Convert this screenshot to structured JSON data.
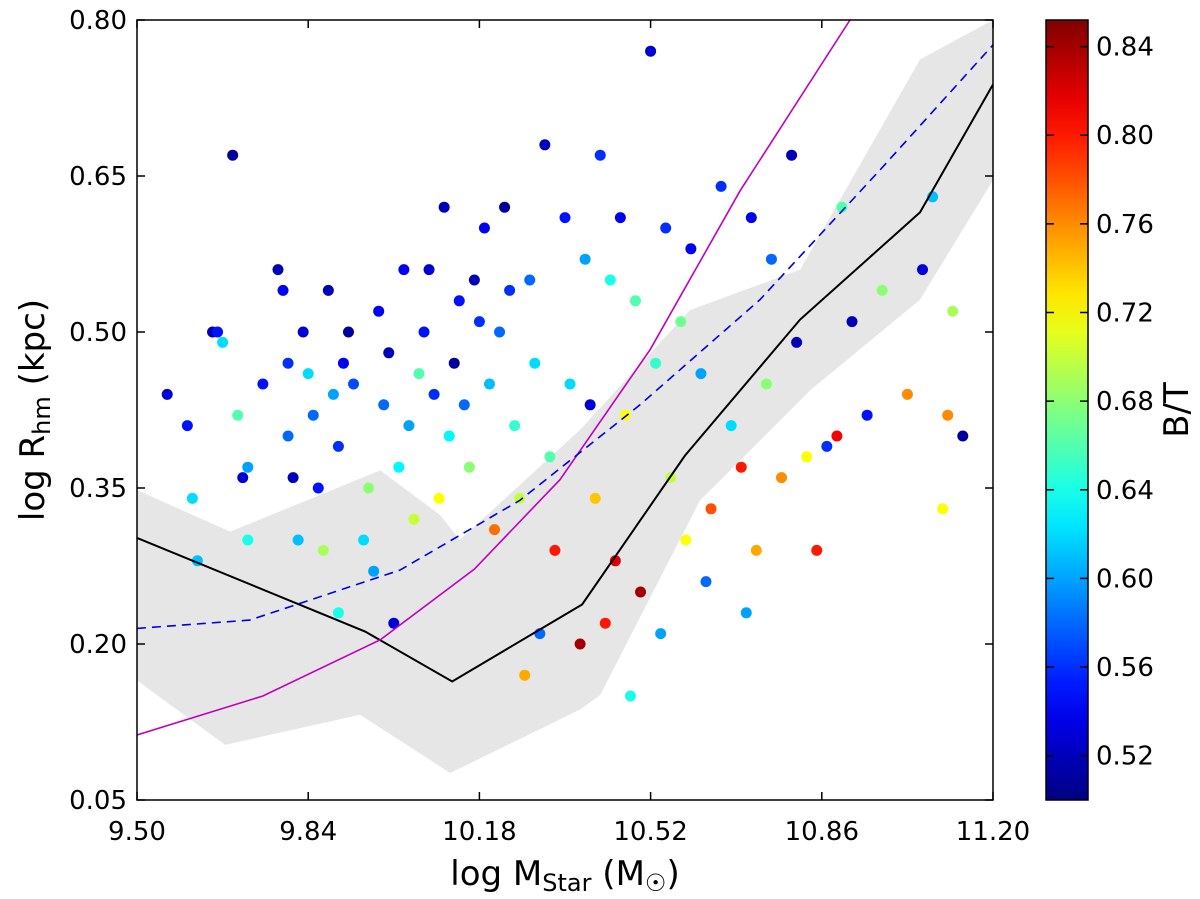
{
  "chart_data": {
    "type": "scatter",
    "xlabel": [
      "log M",
      "Star",
      " (M",
      "☉",
      ")"
    ],
    "ylabel": [
      "log R",
      "hm",
      " (kpc)"
    ],
    "colorbar_label": "B/T",
    "xlim": [
      9.5,
      11.2
    ],
    "ylim": [
      0.05,
      0.8
    ],
    "clim": [
      0.5,
      0.852
    ],
    "colormap": "jet",
    "xticks": [
      {
        "value": 9.5,
        "label": "9.50"
      },
      9.84,
      10.18,
      10.52,
      10.86,
      {
        "value": 11.2,
        "label": "11.20"
      }
    ],
    "yticks": [
      0.05,
      {
        "value": 0.2,
        "label": "0.20"
      },
      0.35,
      {
        "value": 0.5,
        "label": "0.50"
      },
      0.65,
      {
        "value": 0.8,
        "label": "0.80"
      }
    ],
    "cticks": [
      0.52,
      0.56,
      {
        "value": 0.6,
        "label": "0.60"
      },
      0.64,
      0.68,
      0.72,
      0.76,
      {
        "value": 0.8,
        "label": "0.80"
      },
      0.84
    ],
    "band": {
      "color": "#e6e6e6",
      "x_upper": [
        9.5,
        9.685,
        9.983,
        10.102,
        10.141,
        10.38,
        10.598,
        10.817,
        11.055,
        11.2
      ],
      "upper": [
        0.348,
        0.308,
        0.367,
        0.324,
        0.3,
        0.406,
        0.521,
        0.56,
        0.762,
        0.8
      ],
      "x_lower": [
        9.5,
        9.675,
        9.943,
        10.122,
        10.38,
        10.42,
        10.618,
        10.837,
        11.055,
        11.2
      ],
      "lower": [
        0.165,
        0.103,
        0.132,
        0.076,
        0.137,
        0.151,
        0.338,
        0.444,
        0.531,
        0.646
      ]
    },
    "curves": [
      {
        "color": "#000000",
        "style": "solid",
        "x": [
          9.5,
          9.953,
          10.126,
          10.384,
          10.588,
          10.817,
          11.055,
          11.2
        ],
        "y": [
          0.302,
          0.212,
          0.164,
          0.238,
          0.381,
          0.512,
          0.615,
          0.738
        ]
      },
      {
        "color": "#bf00bf",
        "style": "solid",
        "x": [
          9.5,
          9.75,
          9.983,
          10.17,
          10.34,
          10.519,
          10.698,
          10.916
        ],
        "y": [
          0.1125,
          0.15,
          0.204,
          0.272,
          0.358,
          0.483,
          0.636,
          0.8
        ]
      },
      {
        "color": "#0000e0",
        "style": "dashed",
        "x": [
          9.5,
          9.724,
          10.022,
          10.26,
          10.499,
          10.737,
          10.976,
          11.2
        ],
        "y": [
          0.215,
          0.223,
          0.271,
          0.338,
          0.43,
          0.531,
          0.656,
          0.776
        ]
      }
    ],
    "points": {
      "x": [
        9.56,
        9.6,
        9.61,
        9.62,
        9.65,
        9.66,
        9.67,
        9.69,
        9.7,
        9.71,
        9.72,
        9.72,
        9.75,
        9.78,
        9.79,
        9.8,
        9.8,
        9.81,
        9.82,
        9.83,
        9.84,
        9.85,
        9.86,
        9.87,
        9.88,
        9.89,
        9.9,
        9.9,
        9.91,
        9.92,
        9.93,
        9.95,
        9.96,
        9.97,
        9.98,
        9.99,
        10.0,
        10.01,
        10.02,
        10.03,
        10.04,
        10.05,
        10.06,
        10.07,
        10.08,
        10.09,
        10.1,
        10.11,
        10.12,
        10.13,
        10.14,
        10.15,
        10.16,
        10.17,
        10.18,
        10.19,
        10.2,
        10.21,
        10.22,
        10.23,
        10.24,
        10.25,
        10.26,
        10.27,
        10.28,
        10.29,
        10.3,
        10.31,
        10.32,
        10.33,
        10.35,
        10.36,
        10.38,
        10.39,
        10.4,
        10.41,
        10.42,
        10.43,
        10.44,
        10.45,
        10.46,
        10.47,
        10.48,
        10.49,
        10.5,
        10.52,
        10.53,
        10.54,
        10.55,
        10.56,
        10.58,
        10.59,
        10.6,
        10.62,
        10.63,
        10.64,
        10.66,
        10.68,
        10.7,
        10.71,
        10.72,
        10.73,
        10.75,
        10.76,
        10.78,
        10.8,
        10.81,
        10.83,
        10.85,
        10.87,
        10.89,
        10.9,
        10.92,
        10.95,
        10.98,
        11.03,
        11.06,
        11.08,
        11.1,
        11.12,
        11.14,
        11.11
      ],
      "y": [
        0.44,
        0.41,
        0.34,
        0.28,
        0.5,
        0.5,
        0.49,
        0.67,
        0.42,
        0.36,
        0.3,
        0.37,
        0.45,
        0.56,
        0.54,
        0.47,
        0.4,
        0.36,
        0.3,
        0.5,
        0.46,
        0.42,
        0.35,
        0.29,
        0.54,
        0.44,
        0.39,
        0.23,
        0.47,
        0.5,
        0.45,
        0.3,
        0.35,
        0.27,
        0.52,
        0.43,
        0.48,
        0.22,
        0.37,
        0.56,
        0.41,
        0.32,
        0.46,
        0.5,
        0.56,
        0.44,
        0.34,
        0.62,
        0.4,
        0.47,
        0.53,
        0.43,
        0.37,
        0.55,
        0.51,
        0.6,
        0.45,
        0.31,
        0.5,
        0.62,
        0.54,
        0.41,
        0.34,
        0.17,
        0.55,
        0.47,
        0.21,
        0.68,
        0.38,
        0.29,
        0.61,
        0.45,
        0.2,
        0.57,
        0.43,
        0.34,
        0.67,
        0.22,
        0.55,
        0.28,
        0.61,
        0.42,
        0.15,
        0.53,
        0.25,
        0.77,
        0.47,
        0.21,
        0.6,
        0.36,
        0.51,
        0.3,
        0.58,
        0.46,
        0.26,
        0.33,
        0.64,
        0.41,
        0.37,
        0.23,
        0.61,
        0.29,
        0.45,
        0.57,
        0.36,
        0.67,
        0.49,
        0.38,
        0.29,
        0.39,
        0.4,
        0.62,
        0.51,
        0.42,
        0.54,
        0.44,
        0.56,
        0.63,
        0.33,
        0.52,
        0.4,
        0.42
      ],
      "c": [
        0.53,
        0.55,
        0.62,
        0.61,
        0.52,
        0.55,
        0.62,
        0.51,
        0.66,
        0.53,
        0.64,
        0.6,
        0.55,
        0.52,
        0.54,
        0.56,
        0.58,
        0.52,
        0.61,
        0.53,
        0.62,
        0.58,
        0.55,
        0.69,
        0.52,
        0.6,
        0.56,
        0.64,
        0.54,
        0.51,
        0.57,
        0.62,
        0.68,
        0.6,
        0.54,
        0.58,
        0.52,
        0.53,
        0.63,
        0.54,
        0.6,
        0.7,
        0.66,
        0.55,
        0.53,
        0.56,
        0.72,
        0.52,
        0.63,
        0.51,
        0.55,
        0.58,
        0.68,
        0.52,
        0.56,
        0.54,
        0.61,
        0.77,
        0.58,
        0.51,
        0.56,
        0.65,
        0.7,
        0.75,
        0.58,
        0.62,
        0.58,
        0.52,
        0.66,
        0.8,
        0.55,
        0.62,
        0.84,
        0.6,
        0.53,
        0.74,
        0.56,
        0.8,
        0.64,
        0.82,
        0.54,
        0.72,
        0.64,
        0.66,
        0.84,
        0.53,
        0.65,
        0.6,
        0.56,
        0.7,
        0.67,
        0.72,
        0.54,
        0.6,
        0.58,
        0.78,
        0.56,
        0.62,
        0.8,
        0.6,
        0.54,
        0.75,
        0.68,
        0.58,
        0.76,
        0.52,
        0.52,
        0.72,
        0.8,
        0.56,
        0.81,
        0.66,
        0.52,
        0.55,
        0.68,
        0.76,
        0.53,
        0.61,
        0.72,
        0.69,
        0.51,
        0.76
      ]
    }
  }
}
